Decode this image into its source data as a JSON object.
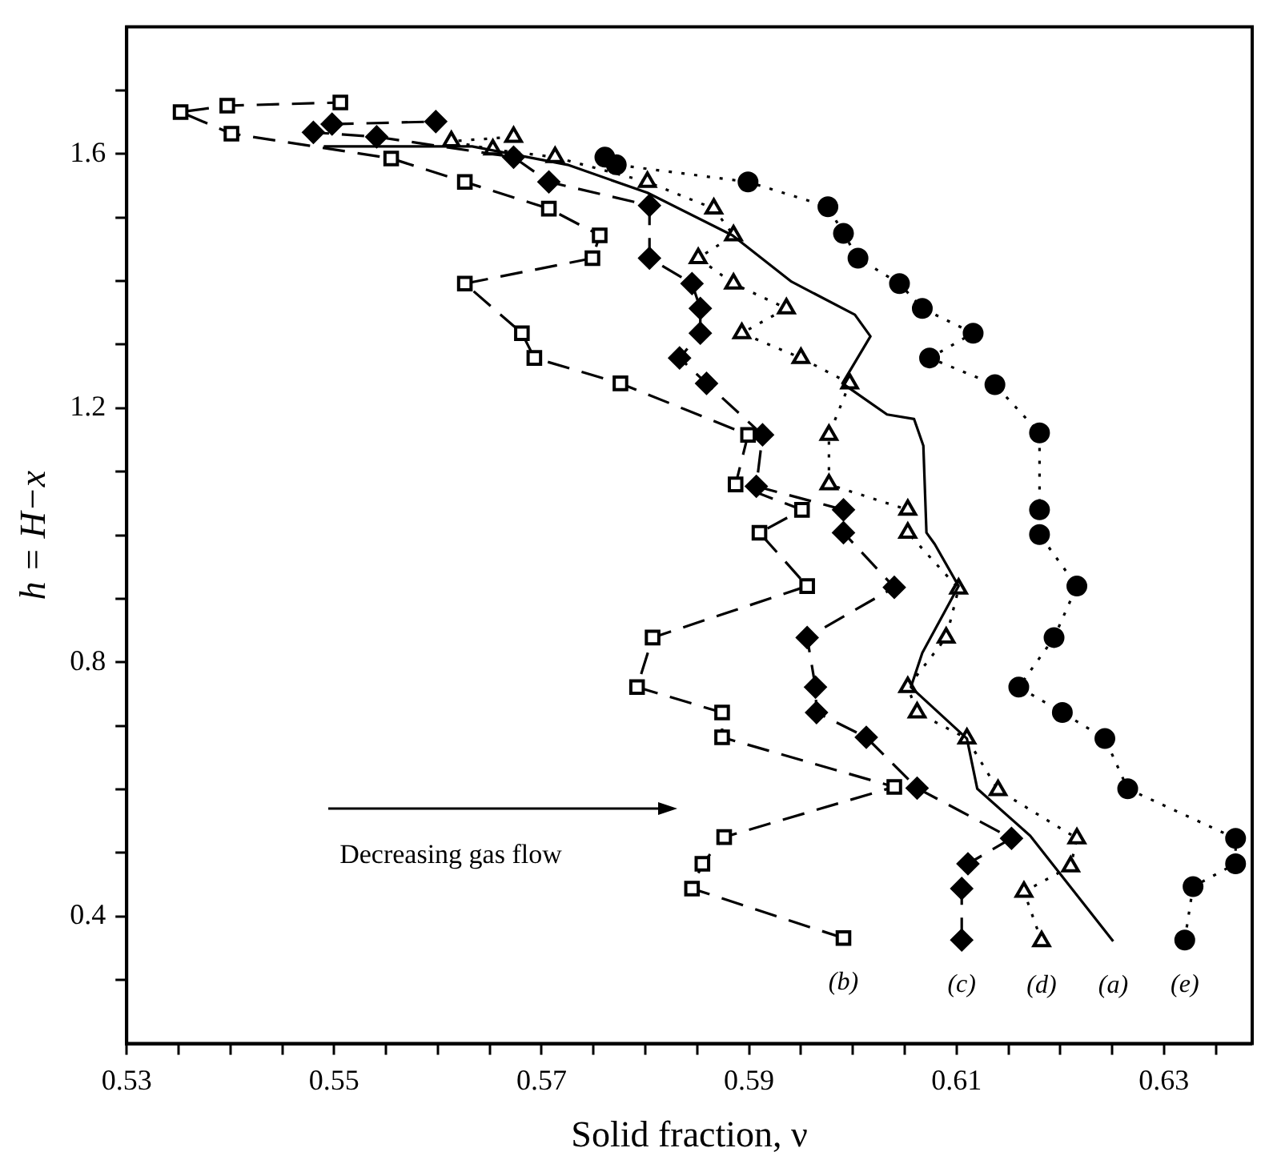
{
  "chart_data": {
    "type": "line",
    "xlabel": "Solid fraction, ν",
    "ylabel": "h = H−x",
    "xlim": [
      0.53,
      0.6385
    ],
    "ylim": [
      0.2,
      1.8
    ],
    "xticks": [
      0.53,
      {
        "value": 0.535,
        "label": null
      },
      {
        "value": 0.54,
        "label": null
      },
      {
        "value": 0.545,
        "label": null
      },
      0.55,
      {
        "value": 0.555,
        "label": null
      },
      {
        "value": 0.56,
        "label": null
      },
      {
        "value": 0.565,
        "label": null
      },
      0.57,
      {
        "value": 0.575,
        "label": null
      },
      {
        "value": 0.58,
        "label": null
      },
      {
        "value": 0.585,
        "label": null
      },
      0.59,
      {
        "value": 0.595,
        "label": null
      },
      {
        "value": 0.6,
        "label": null
      },
      {
        "value": 0.605,
        "label": null
      },
      0.61,
      {
        "value": 0.615,
        "label": null
      },
      {
        "value": 0.62,
        "label": null
      },
      {
        "value": 0.625,
        "label": null
      },
      0.63,
      {
        "value": 0.635,
        "label": null
      }
    ],
    "yticks": [
      {
        "value": 0.3,
        "label": null
      },
      0.4,
      {
        "value": 0.5,
        "label": null
      },
      {
        "value": 0.6,
        "label": null
      },
      {
        "value": 0.7,
        "label": null
      },
      0.8,
      {
        "value": 0.9,
        "label": null
      },
      {
        "value": 1.0,
        "label": null
      },
      {
        "value": 1.1,
        "label": null
      },
      1.2,
      {
        "value": 1.3,
        "label": null
      },
      {
        "value": 1.4,
        "label": null
      },
      {
        "value": 1.5,
        "label": null
      },
      1.6,
      {
        "value": 1.7,
        "label": null
      }
    ],
    "grid": false,
    "legend": false,
    "series": [
      {
        "name": "(a)",
        "color": "#000000",
        "marker": "none",
        "line_style": "solid",
        "x": [
          0.6251,
          0.6171,
          0.612,
          0.611,
          0.6056,
          0.6067,
          0.6102,
          0.6079,
          0.6071,
          0.6068,
          0.6059,
          0.6033,
          0.599,
          0.6017,
          0.6002,
          0.5941,
          0.5884,
          0.5802,
          0.5725,
          0.5633,
          0.549
        ],
        "values": [
          0.361,
          0.527,
          0.601,
          0.68,
          0.761,
          0.815,
          0.92,
          0.986,
          1.004,
          1.141,
          1.183,
          1.19,
          1.239,
          1.313,
          1.347,
          1.399,
          1.472,
          1.539,
          1.583,
          1.612,
          1.612
        ]
      },
      {
        "name": "(b)",
        "color": "#000000",
        "marker": "square",
        "line_style": "dashed",
        "x": [
          0.5991,
          0.5845,
          0.5855,
          0.5876,
          0.604,
          0.5874,
          0.5874,
          0.5792,
          0.5807,
          0.5956,
          0.591,
          0.5951,
          0.5887,
          0.5899,
          0.5776,
          0.5693,
          0.5681,
          0.5626,
          0.5749,
          0.5756,
          0.5707,
          0.5626,
          0.5555,
          0.5401,
          0.5352,
          0.5397,
          0.5506
        ],
        "values": [
          0.366,
          0.444,
          0.483,
          0.525,
          0.604,
          0.682,
          0.721,
          0.761,
          0.839,
          0.92,
          1.004,
          1.04,
          1.08,
          1.158,
          1.239,
          1.279,
          1.318,
          1.396,
          1.436,
          1.472,
          1.514,
          1.556,
          1.593,
          1.632,
          1.666,
          1.676,
          1.681
        ]
      },
      {
        "name": "(c)",
        "color": "#000000",
        "marker": "diamond",
        "line_style": "dashed",
        "x": [
          0.6105,
          0.6105,
          0.6111,
          0.6153,
          0.6062,
          0.6013,
          0.5965,
          0.5964,
          0.5956,
          0.604,
          0.5991,
          0.5991,
          0.5907,
          0.5913,
          0.5859,
          0.5833,
          0.5853,
          0.5853,
          0.5845,
          0.5804,
          0.5804,
          0.5707,
          0.5673,
          0.5541,
          0.548,
          0.5498,
          0.5598
        ],
        "values": [
          0.363,
          0.444,
          0.483,
          0.523,
          0.602,
          0.682,
          0.721,
          0.761,
          0.839,
          0.918,
          1.004,
          1.04,
          1.077,
          1.158,
          1.239,
          1.279,
          1.318,
          1.357,
          1.396,
          1.436,
          1.519,
          1.556,
          1.595,
          1.627,
          1.634,
          1.647,
          1.651
        ]
      },
      {
        "name": "(d)",
        "color": "#000000",
        "marker": "triangle",
        "line_style": "dotted",
        "x": [
          0.6182,
          0.6165,
          0.621,
          0.6216,
          0.614,
          0.611,
          0.6062,
          0.6053,
          0.609,
          0.6102,
          0.6053,
          0.6053,
          0.5977,
          0.5977,
          0.5997,
          0.595,
          0.5893,
          0.5936,
          0.5885,
          0.5851,
          0.5885,
          0.5866,
          0.5802,
          0.5713,
          0.5653,
          0.5613,
          0.5673
        ],
        "values": [
          0.361,
          0.439,
          0.479,
          0.523,
          0.599,
          0.68,
          0.721,
          0.761,
          0.839,
          0.916,
          1.004,
          1.04,
          1.08,
          1.158,
          1.239,
          1.279,
          1.318,
          1.357,
          1.396,
          1.436,
          1.472,
          1.514,
          1.556,
          1.595,
          1.607,
          1.62,
          1.627
        ]
      },
      {
        "name": "(e)",
        "color": "#000000",
        "marker": "circle",
        "line_style": "dotted",
        "x": [
          0.632,
          0.6328,
          0.6369,
          0.6369,
          0.6265,
          0.6243,
          0.6202,
          0.616,
          0.6194,
          0.6216,
          0.618,
          0.618,
          0.618,
          0.6137,
          0.6074,
          0.6116,
          0.6067,
          0.6045,
          0.6005,
          0.5991,
          0.5976,
          0.5899,
          0.5772,
          0.5761
        ],
        "values": [
          0.363,
          0.447,
          0.483,
          0.523,
          0.601,
          0.68,
          0.721,
          0.761,
          0.839,
          0.92,
          1.001,
          1.04,
          1.161,
          1.237,
          1.279,
          1.318,
          1.357,
          1.396,
          1.436,
          1.475,
          1.517,
          1.556,
          1.583,
          1.595
        ]
      }
    ],
    "annotations": [
      "Decreasing gas flow"
    ]
  }
}
